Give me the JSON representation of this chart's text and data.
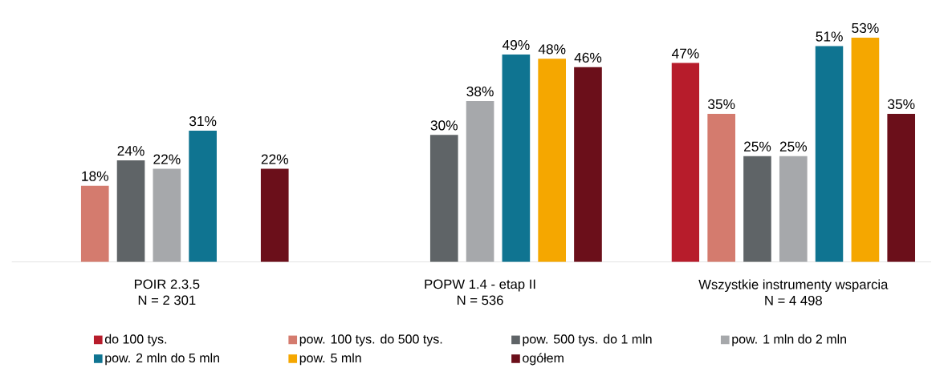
{
  "chart_data": {
    "type": "bar",
    "categories": [
      "POIR 2.3.5\nN = 2 301",
      "POPW 1.4 - etap II\nN = 536",
      "Wszystkie instrumenty wsparcia\nN = 4 498"
    ],
    "series": [
      {
        "name": "do 100 tys.",
        "color": "#b71c2b",
        "values": [
          null,
          null,
          47
        ],
        "value_labels": [
          null,
          null,
          "47%"
        ]
      },
      {
        "name": "pow. 100 tys. do 500 tys.",
        "color": "#d47b6e",
        "values": [
          18,
          null,
          35
        ],
        "value_labels": [
          "18%",
          null,
          "35%"
        ]
      },
      {
        "name": "pow. 500 tys. do 1 mln",
        "color": "#5f6467",
        "values": [
          24,
          30,
          25
        ],
        "value_labels": [
          "24%",
          "30%",
          "25%"
        ]
      },
      {
        "name": "pow. 1 mln do 2 mln",
        "color": "#a6a8ab",
        "values": [
          22,
          38,
          25
        ],
        "value_labels": [
          "22%",
          "38%",
          "25%"
        ]
      },
      {
        "name": "pow. 2 mln do 5 mln",
        "color": "#0f7491",
        "values": [
          31,
          49,
          51
        ],
        "value_labels": [
          "31%",
          "49%",
          "51%"
        ]
      },
      {
        "name": "pow. 5 mln",
        "color": "#f5a700",
        "values": [
          null,
          48,
          53
        ],
        "value_labels": [
          null,
          "48%",
          "53%"
        ]
      },
      {
        "name": "ogółem",
        "color": "#6b0f1a",
        "values": [
          22,
          46,
          35
        ],
        "value_labels": [
          "22%",
          "46%",
          "35%"
        ]
      }
    ],
    "legend": "bottom"
  }
}
